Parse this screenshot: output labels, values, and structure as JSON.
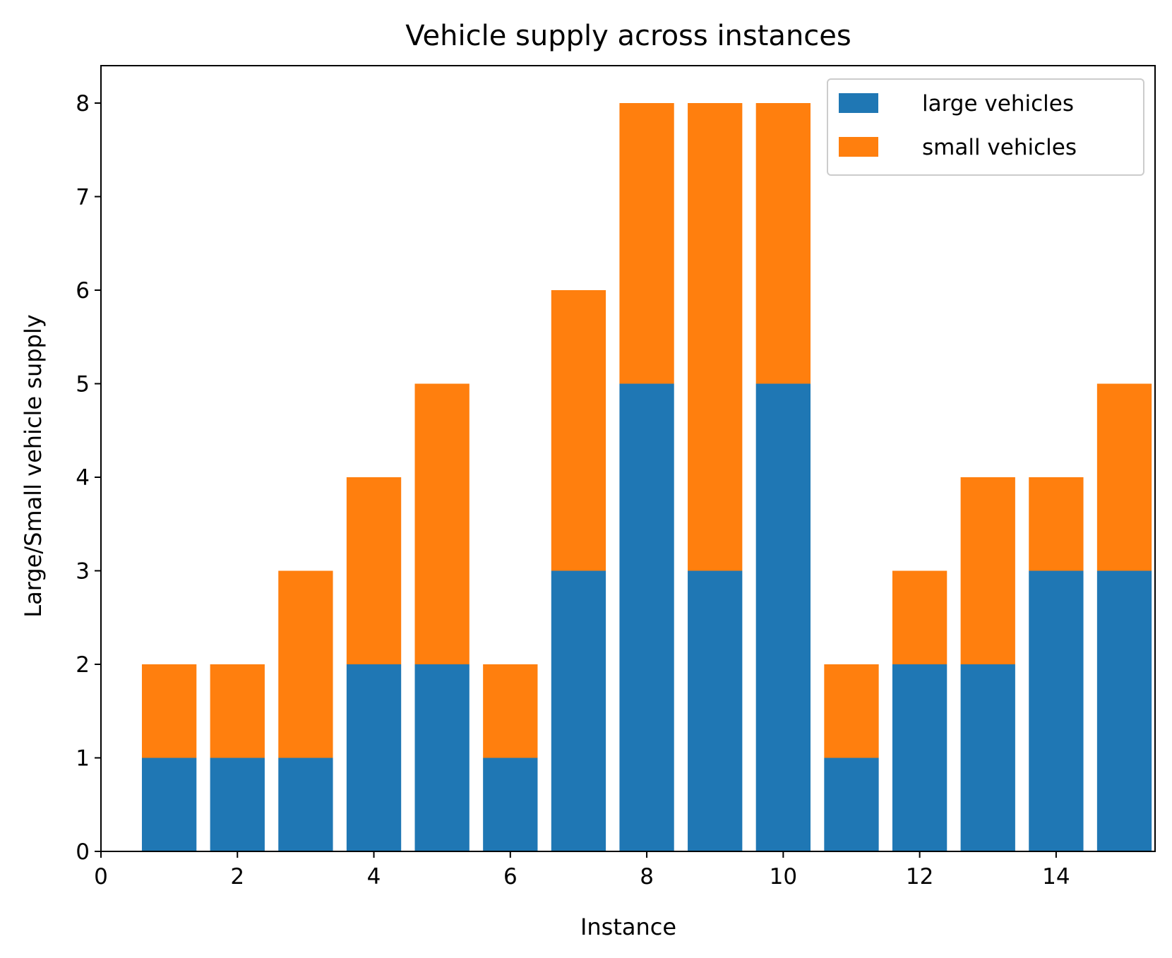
{
  "chart_data": {
    "type": "bar",
    "stacked": true,
    "title": "Vehicle supply across instances",
    "xlabel": "Instance",
    "ylabel": "Large/Small vehicle supply",
    "x": [
      1,
      2,
      3,
      4,
      5,
      6,
      7,
      8,
      9,
      10,
      11,
      12,
      13,
      14,
      15
    ],
    "series": [
      {
        "name": "large vehicles",
        "color": "#1f77b4",
        "values": [
          1,
          1,
          1,
          2,
          2,
          1,
          3,
          5,
          3,
          5,
          1,
          2,
          2,
          3,
          3
        ]
      },
      {
        "name": "small vehicles",
        "color": "#ff7f0e",
        "values": [
          1,
          1,
          2,
          2,
          3,
          1,
          3,
          3,
          5,
          3,
          1,
          1,
          2,
          1,
          2
        ]
      }
    ],
    "xlim": [
      0,
      15.45
    ],
    "ylim": [
      0,
      8.4
    ],
    "xticks": [
      0,
      2,
      4,
      6,
      8,
      10,
      12,
      14
    ],
    "yticks": [
      0,
      1,
      2,
      3,
      4,
      5,
      6,
      7,
      8
    ],
    "bar_width": 0.8,
    "grid": false,
    "legend_position": "top-right"
  }
}
